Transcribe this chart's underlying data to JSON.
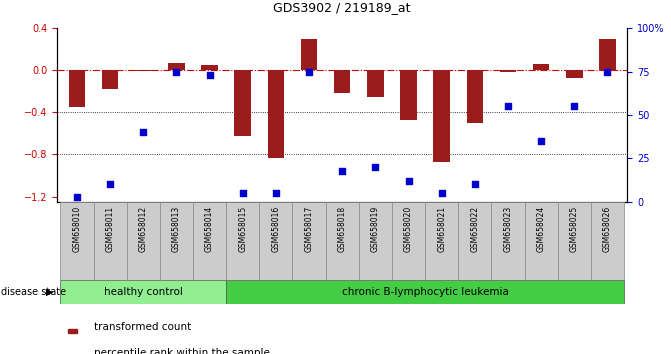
{
  "title": "GDS3902 / 219189_at",
  "samples": [
    "GSM658010",
    "GSM658011",
    "GSM658012",
    "GSM658013",
    "GSM658014",
    "GSM658015",
    "GSM658016",
    "GSM658017",
    "GSM658018",
    "GSM658019",
    "GSM658020",
    "GSM658021",
    "GSM658022",
    "GSM658023",
    "GSM658024",
    "GSM658025",
    "GSM658026"
  ],
  "bar_values": [
    -0.35,
    -0.18,
    -0.01,
    0.07,
    0.05,
    -0.62,
    -0.83,
    0.3,
    -0.22,
    -0.25,
    -0.47,
    -0.87,
    -0.5,
    -0.02,
    0.06,
    -0.07,
    0.3
  ],
  "percentile_values": [
    3,
    10,
    40,
    75,
    73,
    5,
    5,
    75,
    18,
    20,
    12,
    5,
    10,
    55,
    35,
    55,
    75
  ],
  "bar_color": "#9B1C1C",
  "dot_color": "#0000CC",
  "ylim_left": [
    -1.25,
    0.4
  ],
  "ylim_right": [
    0,
    100
  ],
  "yticks_left": [
    -1.2,
    -0.8,
    -0.4,
    0.0,
    0.4
  ],
  "yticks_right": [
    0,
    25,
    50,
    75,
    100
  ],
  "ytick_labels_right": [
    "0",
    "25",
    "50",
    "75",
    "100%"
  ],
  "hline_y": 0.0,
  "dotted_lines": [
    -0.4,
    -0.8
  ],
  "healthy_control_count": 5,
  "group1_label": "healthy control",
  "group2_label": "chronic B-lymphocytic leukemia",
  "group1_color": "#90EE90",
  "group2_color": "#44CC44",
  "disease_state_label": "disease state",
  "legend_bar_label": "transformed count",
  "legend_dot_label": "percentile rank within the sample",
  "bg_color": "#FFFFFF",
  "tick_label_color_left": "#CC0000",
  "tick_label_color_right": "#0000CC",
  "xlabel_box_color": "#CCCCCC",
  "xlabel_box_edge": "#888888"
}
